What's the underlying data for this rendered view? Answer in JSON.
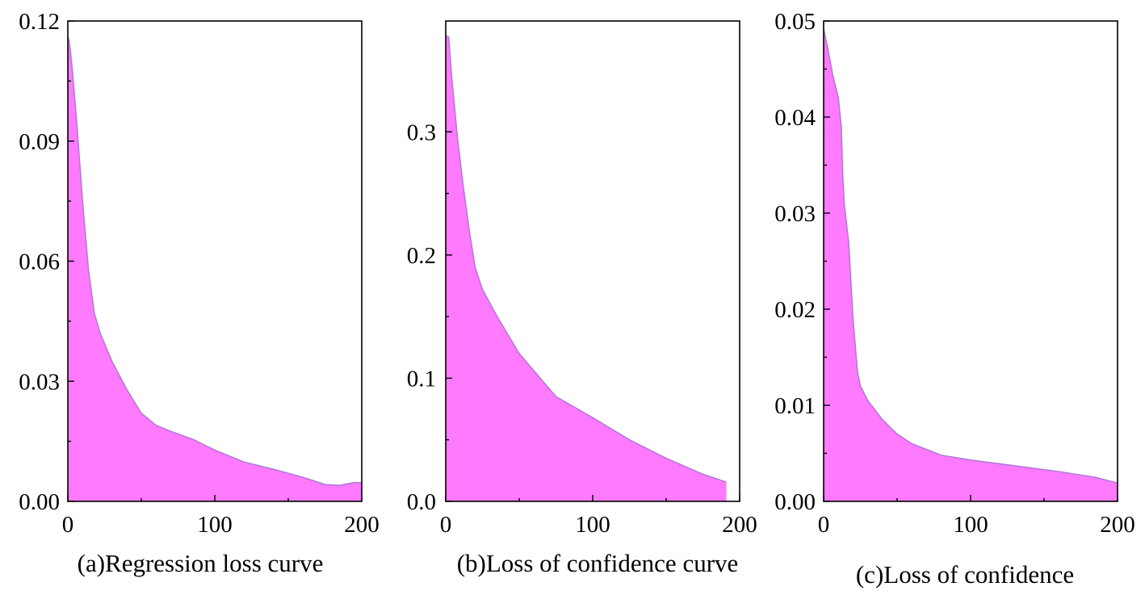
{
  "chart_data": [
    {
      "type": "area",
      "caption": "(a)Regression loss curve",
      "xlim": [
        0,
        200
      ],
      "ylim": [
        0,
        0.12
      ],
      "x_ticks": [
        0,
        100,
        200
      ],
      "x_tick_labels": [
        "0",
        "100",
        "200"
      ],
      "y_ticks": [
        0,
        0.03,
        0.06,
        0.09,
        0.12
      ],
      "y_tick_labels": [
        "0.00",
        "0.03",
        "0.06",
        "0.09",
        "0.12"
      ],
      "fill_color": "#ff7aff",
      "line_color": "#b07ad8",
      "points": [
        [
          0,
          0.116
        ],
        [
          1,
          0.115
        ],
        [
          3,
          0.108
        ],
        [
          6,
          0.095
        ],
        [
          10,
          0.075
        ],
        [
          14,
          0.058
        ],
        [
          18,
          0.047
        ],
        [
          22,
          0.042
        ],
        [
          30,
          0.035
        ],
        [
          40,
          0.028
        ],
        [
          50,
          0.022
        ],
        [
          60,
          0.019
        ],
        [
          70,
          0.0175
        ],
        [
          85,
          0.0155
        ],
        [
          100,
          0.0128
        ],
        [
          120,
          0.0098
        ],
        [
          140,
          0.008
        ],
        [
          160,
          0.006
        ],
        [
          175,
          0.0042
        ],
        [
          185,
          0.004
        ],
        [
          195,
          0.0047
        ],
        [
          200,
          0.0046
        ]
      ]
    },
    {
      "type": "area",
      "caption": "(b)Loss of confidence curve",
      "xlim": [
        0,
        200
      ],
      "ylim": [
        0,
        0.39
      ],
      "x_ticks": [
        0,
        100,
        200
      ],
      "x_tick_labels": [
        "0",
        "100",
        "200"
      ],
      "y_ticks": [
        0,
        0.1,
        0.2,
        0.3
      ],
      "y_tick_labels": [
        "0.0",
        "0.1",
        "0.2",
        "0.3"
      ],
      "fill_color": "#ff7aff",
      "line_color": "#b07ad8",
      "points": [
        [
          0,
          0.378
        ],
        [
          2,
          0.377
        ],
        [
          4,
          0.345
        ],
        [
          8,
          0.295
        ],
        [
          12,
          0.255
        ],
        [
          16,
          0.22
        ],
        [
          20,
          0.19
        ],
        [
          25,
          0.172
        ],
        [
          35,
          0.15
        ],
        [
          50,
          0.12
        ],
        [
          75,
          0.085
        ],
        [
          100,
          0.068
        ],
        [
          125,
          0.05
        ],
        [
          150,
          0.035
        ],
        [
          175,
          0.022
        ],
        [
          190,
          0.016
        ],
        [
          191,
          0.016
        ]
      ]
    },
    {
      "type": "area",
      "caption": "(c)Loss of confidence",
      "xlim": [
        0,
        200
      ],
      "ylim": [
        0,
        0.05
      ],
      "x_ticks": [
        0,
        100,
        200
      ],
      "x_tick_labels": [
        "0",
        "100",
        "200"
      ],
      "y_ticks": [
        0,
        0.01,
        0.02,
        0.03,
        0.04,
        0.05
      ],
      "y_tick_labels": [
        "0.00",
        "0.01",
        "0.02",
        "0.03",
        "0.04",
        "0.05"
      ],
      "fill_color": "#ff7aff",
      "line_color": "#b07ad8",
      "points": [
        [
          0,
          0.0492
        ],
        [
          3,
          0.047
        ],
        [
          6,
          0.0445
        ],
        [
          10,
          0.042
        ],
        [
          12,
          0.039
        ],
        [
          13,
          0.034
        ],
        [
          14,
          0.031
        ],
        [
          17,
          0.027
        ],
        [
          20,
          0.019
        ],
        [
          23,
          0.0135
        ],
        [
          25,
          0.012
        ],
        [
          30,
          0.0105
        ],
        [
          40,
          0.0085
        ],
        [
          50,
          0.007
        ],
        [
          60,
          0.006
        ],
        [
          80,
          0.0048
        ],
        [
          100,
          0.0043
        ],
        [
          130,
          0.0037
        ],
        [
          160,
          0.0031
        ],
        [
          185,
          0.0025
        ],
        [
          200,
          0.0019
        ]
      ]
    }
  ]
}
